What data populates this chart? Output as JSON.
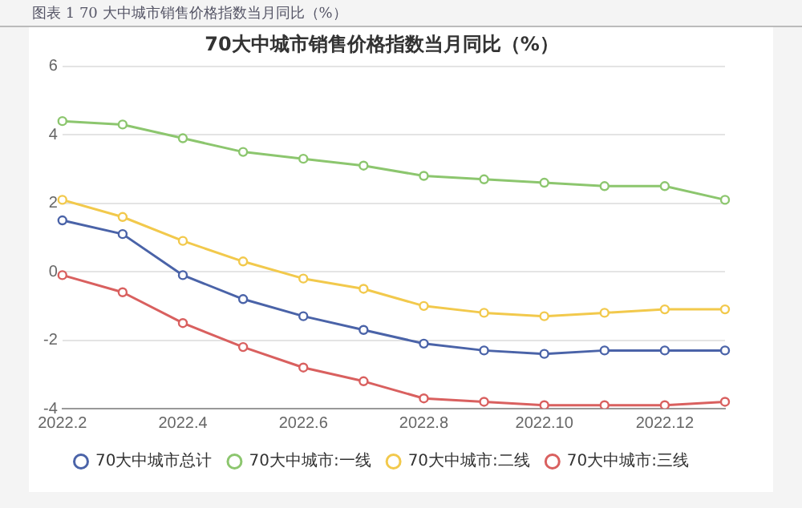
{
  "chart_data": {
    "type": "line",
    "title": "70大中城市销售价格指数当月同比（%）",
    "subtitle": "图表 1 70 大中城市销售价格指数当月同比（%）",
    "categories": [
      "2022.2",
      null,
      "2022.4",
      null,
      "2022.6",
      null,
      "2022.8",
      null,
      "2022.10",
      null,
      "2022.12",
      null
    ],
    "series": [
      {
        "name": "70大中城市总计",
        "color": "#4a63a8",
        "values": [
          1.5,
          1.1,
          -0.1,
          -0.8,
          -1.3,
          -1.7,
          -2.1,
          -2.3,
          -2.4,
          -2.3,
          -2.3,
          -2.3
        ]
      },
      {
        "name": "70大中城市:一线",
        "color": "#8cc66e",
        "values": [
          4.4,
          4.3,
          3.9,
          3.5,
          3.3,
          3.1,
          2.8,
          2.7,
          2.6,
          2.5,
          2.5,
          2.1
        ]
      },
      {
        "name": "70大中城市:二线",
        "color": "#f2c94c",
        "values": [
          2.1,
          1.6,
          0.9,
          0.3,
          -0.2,
          -0.5,
          -1.0,
          -1.2,
          -1.3,
          -1.2,
          -1.1,
          -1.1
        ]
      },
      {
        "name": "70大中城市:三线",
        "color": "#d9605f",
        "values": [
          -0.1,
          -0.6,
          -1.5,
          -2.2,
          -2.8,
          -3.2,
          -3.7,
          -3.8,
          -3.9,
          -3.9,
          -3.9,
          -3.8
        ]
      }
    ],
    "ylim": [
      -4,
      6
    ],
    "yticks": [
      -4,
      -2,
      0,
      2,
      4,
      6
    ],
    "grid": "y",
    "legend": "bottom",
    "marker": "circle",
    "line_style": "solid"
  }
}
